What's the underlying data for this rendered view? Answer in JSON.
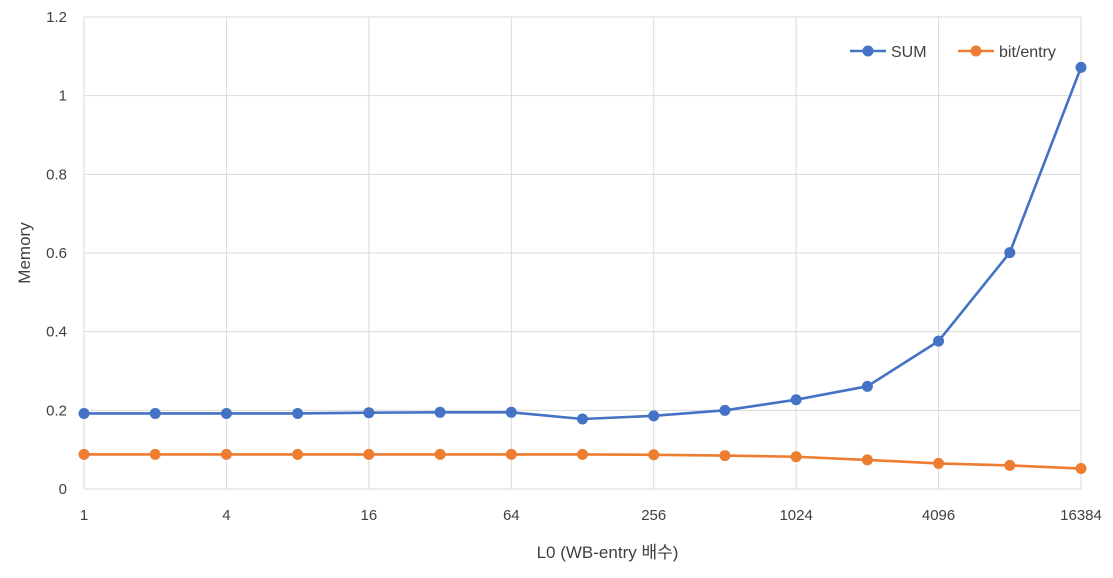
{
  "chart_data": {
    "type": "line",
    "title": "",
    "xlabel": "L0  (WB-entry 배수)",
    "ylabel": "Memory",
    "x": [
      1,
      2,
      4,
      8,
      16,
      32,
      64,
      128,
      256,
      512,
      1024,
      2048,
      4096,
      8192,
      16384
    ],
    "x_scale": "log2",
    "x_tick_labels": [
      "1",
      "4",
      "16",
      "64",
      "256",
      "1024",
      "4096",
      "16384"
    ],
    "x_tick_values": [
      1,
      4,
      16,
      64,
      256,
      1024,
      4096,
      16384
    ],
    "ylim": [
      0,
      1.2
    ],
    "y_ticks": [
      0,
      0.2,
      0.4,
      0.6,
      0.8,
      1,
      1.2
    ],
    "y_tick_labels": [
      "0",
      "0.2",
      "0.4",
      "0.6",
      "0.8",
      "1",
      "1.2"
    ],
    "grid": true,
    "legend_position": "top-right",
    "series": [
      {
        "name": "SUM",
        "color": "#4472C4",
        "values": [
          0.192,
          0.192,
          0.192,
          0.192,
          0.194,
          0.195,
          0.195,
          0.178,
          0.186,
          0.2,
          0.227,
          0.261,
          0.376,
          0.601,
          1.072
        ]
      },
      {
        "name": "bit/entry",
        "color": "#ED7D31",
        "values": [
          0.088,
          0.088,
          0.088,
          0.088,
          0.088,
          0.088,
          0.088,
          0.088,
          0.087,
          0.085,
          0.082,
          0.074,
          0.065,
          0.06,
          0.052
        ]
      }
    ]
  }
}
